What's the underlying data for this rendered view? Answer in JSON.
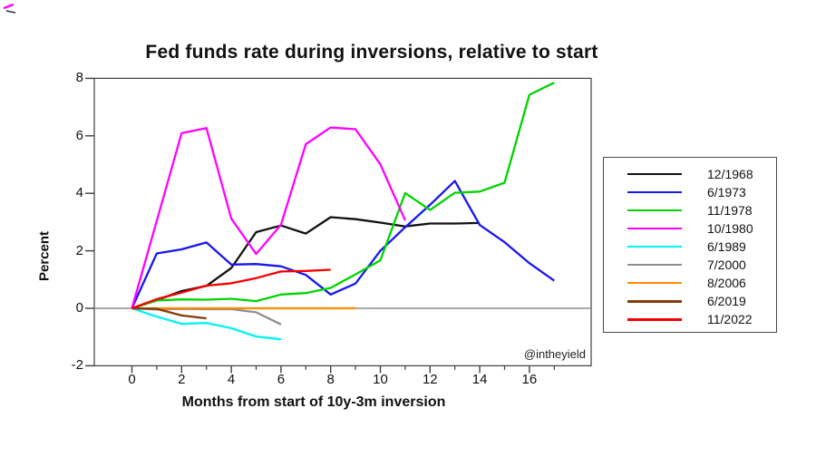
{
  "watermark": "@intheyield",
  "colors": {
    "axis": "#3f3f3f",
    "zero_line": "#8c8c8c",
    "text": "#111111",
    "legend_border": "#4a4a4a",
    "background": "#ffffff"
  },
  "axes": {
    "y_label": "Percent",
    "x_label": "Months from start of 10y-3m inversion",
    "y_ticks": [
      8,
      6,
      4,
      2,
      0,
      -2
    ],
    "x_major_ticks": [
      0,
      2,
      4,
      6,
      8,
      10,
      12,
      14,
      16
    ],
    "x_minor_ticks": [
      1,
      3,
      5,
      7,
      9,
      11,
      13,
      15,
      17
    ]
  },
  "chart_data": {
    "type": "line",
    "title": "Fed funds rate during inversions, relative to start",
    "xlabel": "Months from start of 10y-3m inversion",
    "ylabel": "Percent",
    "xlim": [
      -1.5,
      18.5
    ],
    "ylim": [
      -2,
      8
    ],
    "grid": false,
    "legend_position": "outside-right",
    "x_unit": "months from inversion start, starting at 0",
    "series": [
      {
        "name": "12/1968",
        "color": "#111111",
        "values": [
          0,
          0.28,
          0.6,
          0.78,
          1.4,
          2.65,
          2.88,
          2.6,
          3.17,
          3.1,
          2.98,
          2.85,
          2.95,
          2.95,
          2.97
        ]
      },
      {
        "name": "6/1973",
        "color": "#1717ee",
        "values": [
          0,
          1.91,
          2.05,
          2.29,
          1.52,
          1.54,
          1.46,
          1.16,
          0.48,
          0.86,
          2.0,
          2.82,
          3.6,
          4.43,
          2.9,
          2.3,
          1.57,
          0.96
        ]
      },
      {
        "name": "11/1978",
        "color": "#00d400",
        "values": [
          0,
          0.27,
          0.31,
          0.3,
          0.33,
          0.25,
          0.48,
          0.53,
          0.71,
          1.18,
          1.67,
          4.01,
          3.42,
          4.02,
          4.06,
          4.37,
          7.43,
          7.85
        ]
      },
      {
        "name": "10/1980",
        "color": "#ff00ff",
        "values": [
          0,
          3.04,
          6.09,
          6.27,
          3.12,
          1.89,
          2.91,
          5.71,
          6.29,
          6.23,
          5.01,
          3.06
        ]
      },
      {
        "name": "6/1989",
        "color": "#00f2f2",
        "values": [
          0,
          -0.29,
          -0.54,
          -0.51,
          -0.69,
          -0.98,
          -1.08
        ]
      },
      {
        "name": "7/2000",
        "color": "#8f8f8f",
        "values": [
          0,
          -0.04,
          -0.02,
          -0.03,
          -0.03,
          -0.14,
          -0.56
        ]
      },
      {
        "name": "8/2006",
        "color": "#ff8800",
        "values": [
          0,
          0,
          0,
          0,
          0,
          0,
          0,
          0,
          0,
          0
        ]
      },
      {
        "name": "6/2019",
        "color": "#833c0c",
        "values": [
          0,
          -0.02,
          -0.25,
          -0.35
        ]
      },
      {
        "name": "11/2022",
        "color": "#f60000",
        "values": [
          0,
          0.32,
          0.55,
          0.79,
          0.87,
          1.05,
          1.28,
          1.3,
          1.34
        ]
      }
    ]
  }
}
